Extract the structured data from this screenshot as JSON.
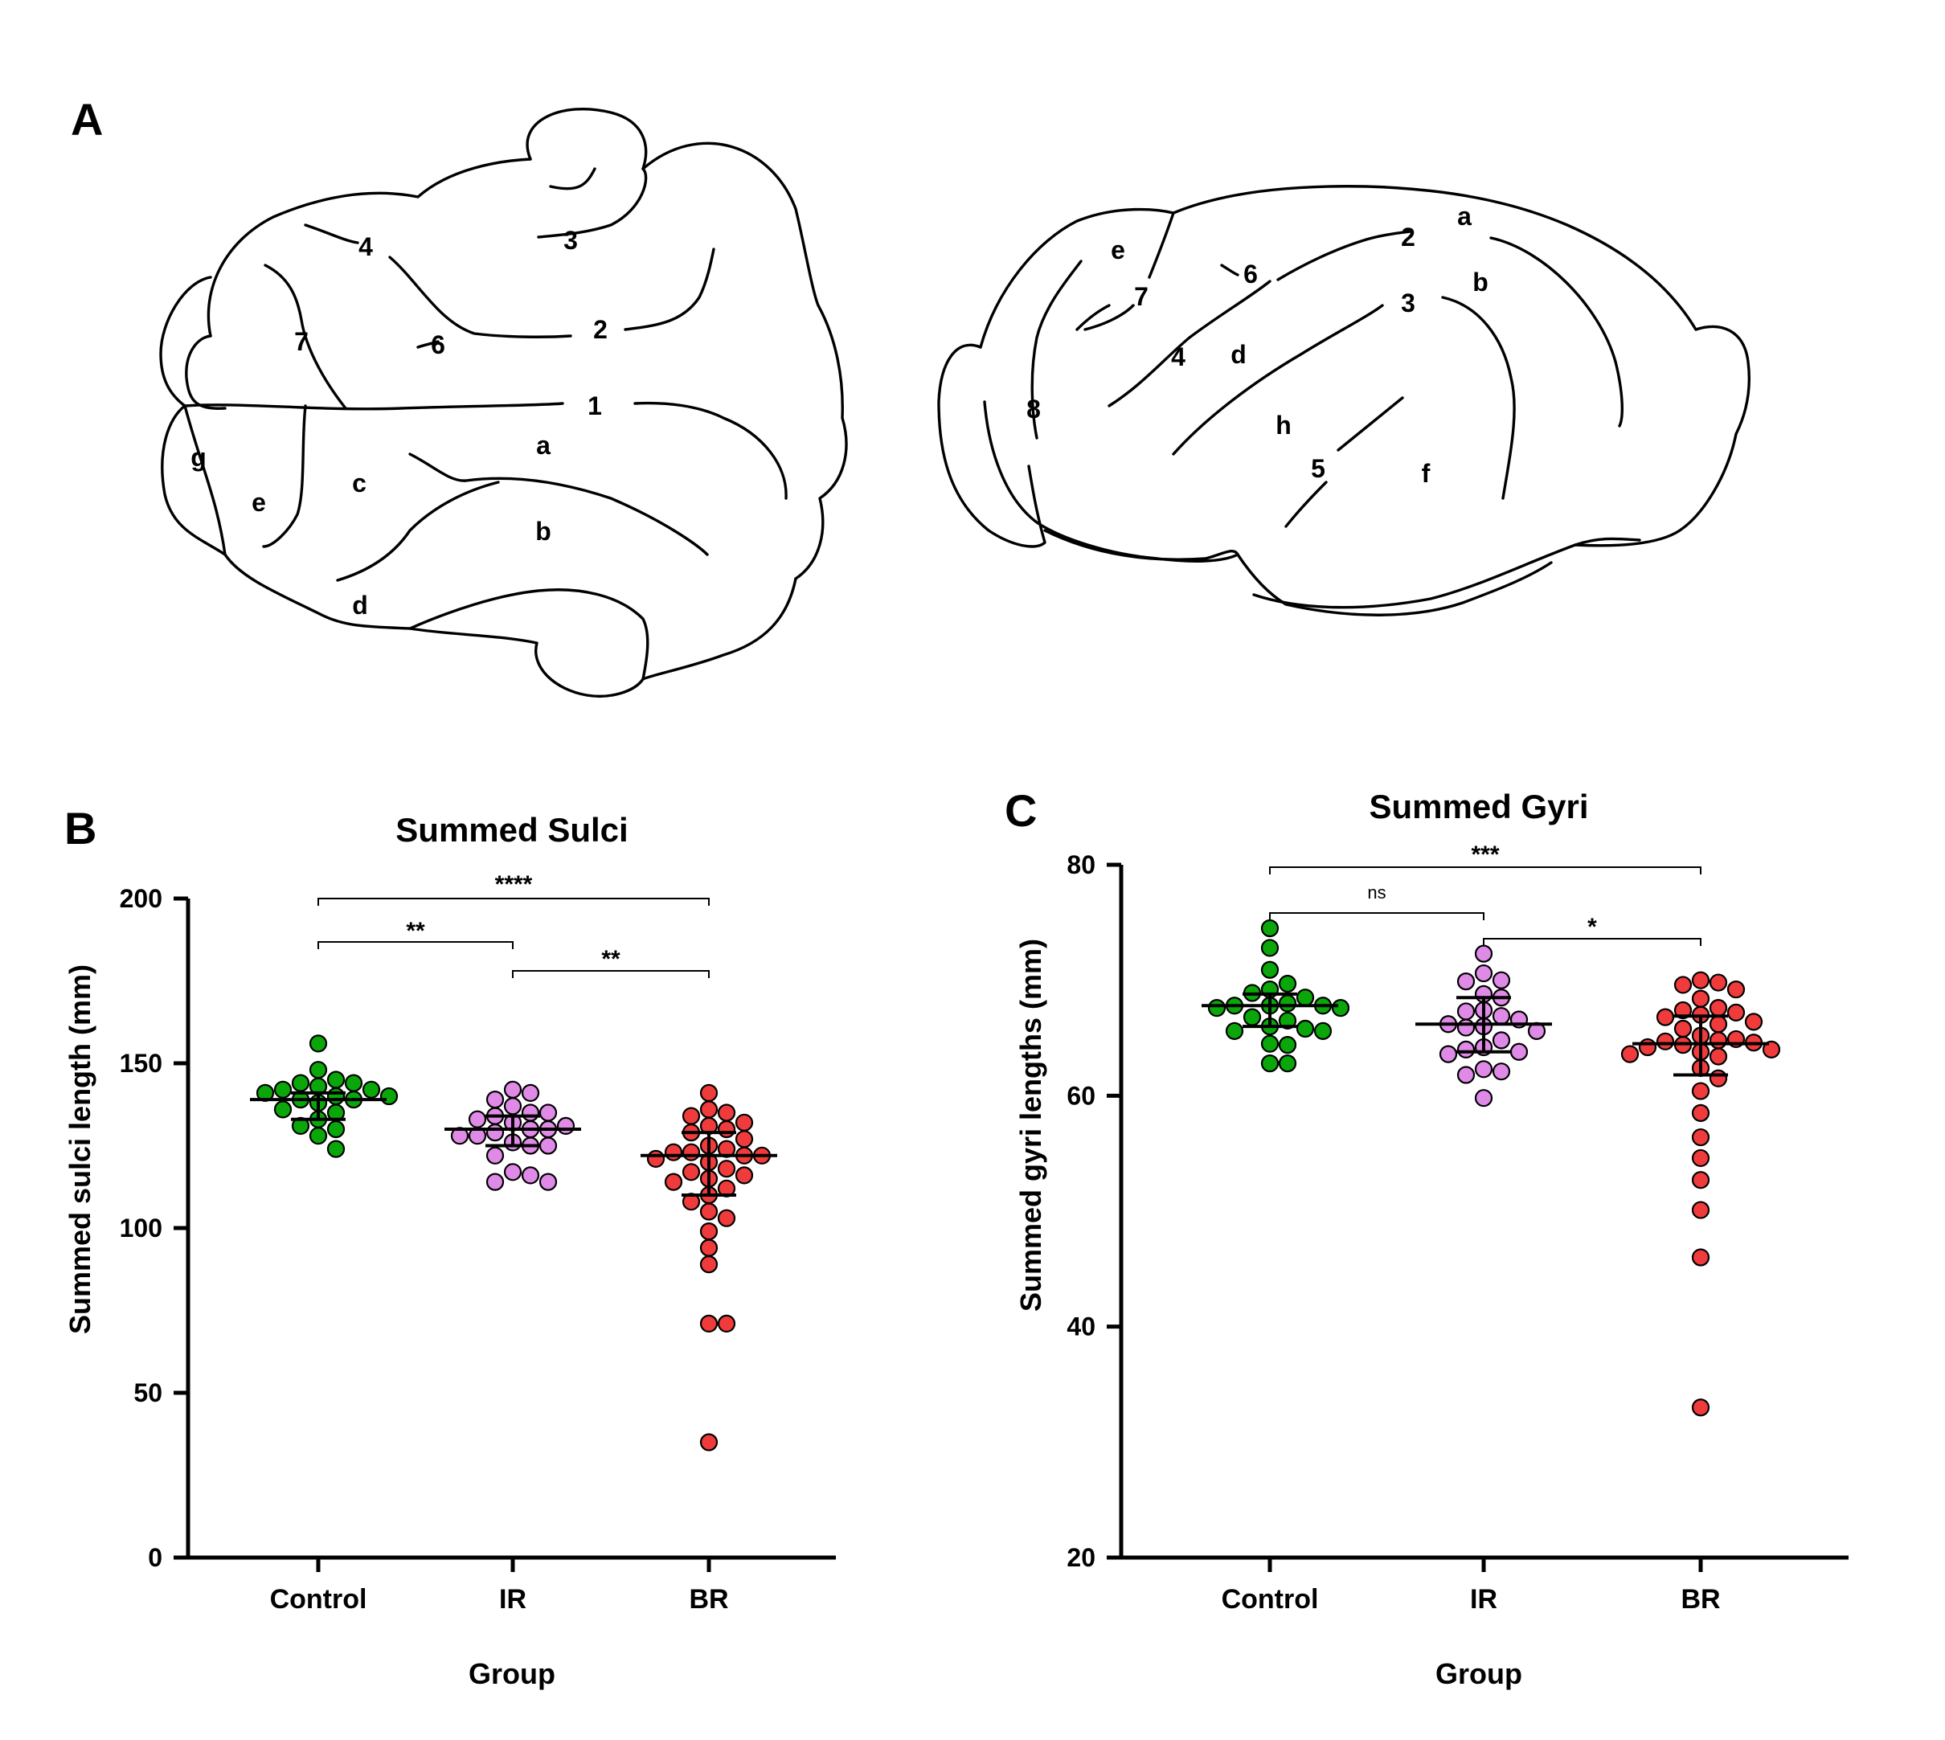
{
  "panels": {
    "a": "A",
    "b": "B",
    "c": "C"
  },
  "brain_dorsal_labels": [
    "1",
    "2",
    "3",
    "4",
    "6",
    "7",
    "a",
    "b",
    "c",
    "d",
    "e",
    "g"
  ],
  "brain_lateral_labels": [
    "2",
    "3",
    "4",
    "5",
    "6",
    "7",
    "8",
    "a",
    "b",
    "d",
    "e",
    "f",
    "h"
  ],
  "colors": {
    "Control": "#0aa60a",
    "IR": "#e08ae8",
    "BR": "#ef3b3b",
    "axis": "#000000"
  },
  "chart_data": [
    {
      "type": "scatter",
      "title": "Summed Sulci",
      "xlabel": "Group",
      "ylabel": "Summed sulci length (mm)",
      "categories": [
        "Control",
        "IR",
        "BR"
      ],
      "ylim": [
        0,
        200
      ],
      "yticks": [
        0,
        50,
        100,
        150,
        200
      ],
      "series": [
        {
          "name": "Control",
          "values": [
            156,
            148,
            145,
            144,
            144,
            143,
            142,
            142,
            141,
            140,
            140,
            139,
            139,
            138,
            136,
            135,
            133,
            131,
            130,
            128,
            124
          ],
          "median": 139,
          "q1": 133,
          "q3": 141
        },
        {
          "name": "IR",
          "values": [
            142,
            141,
            139,
            137,
            135,
            135,
            134,
            133,
            132,
            131,
            130,
            130,
            129,
            128,
            128,
            126,
            125,
            125,
            122,
            117,
            116,
            114,
            114
          ],
          "median": 130,
          "q1": 125,
          "q3": 134
        },
        {
          "name": "BR",
          "values": [
            141,
            136,
            135,
            134,
            132,
            131,
            130,
            129,
            127,
            125,
            124,
            123,
            123,
            122,
            122,
            121,
            120,
            118,
            117,
            116,
            115,
            114,
            112,
            110,
            108,
            105,
            103,
            99,
            94,
            89,
            71,
            71,
            35
          ],
          "median": 122,
          "q1": 110,
          "q3": 129
        }
      ],
      "comparisons": [
        {
          "groups": [
            "Control",
            "BR"
          ],
          "label": "****"
        },
        {
          "groups": [
            "Control",
            "IR"
          ],
          "label": "**"
        },
        {
          "groups": [
            "IR",
            "BR"
          ],
          "label": "**"
        }
      ]
    },
    {
      "type": "scatter",
      "title": "Summed Gyri",
      "xlabel": "Group",
      "ylabel": "Summed gyri lengths (mm)",
      "categories": [
        "Control",
        "IR",
        "BR"
      ],
      "ylim": [
        20,
        80
      ],
      "yticks": [
        20,
        40,
        60,
        80
      ],
      "series": [
        {
          "name": "Control",
          "values": [
            74.5,
            72.8,
            70.9,
            69.7,
            69.2,
            68.9,
            68.5,
            68.0,
            67.8,
            67.8,
            67.8,
            67.6,
            67.6,
            66.8,
            66.5,
            66.0,
            65.8,
            65.6,
            65.6,
            64.5,
            64.4,
            62.8,
            62.8
          ],
          "median": 67.8,
          "q1": 66.0,
          "q3": 68.8
        },
        {
          "name": "IR",
          "values": [
            72.3,
            70.6,
            70.0,
            69.9,
            68.8,
            68.5,
            67.4,
            67.3,
            66.9,
            66.6,
            66.2,
            66.0,
            65.9,
            65.6,
            64.8,
            64.2,
            64.0,
            63.8,
            63.6,
            62.3,
            62.1,
            61.8,
            59.8
          ],
          "median": 66.2,
          "q1": 63.8,
          "q3": 68.5
        },
        {
          "name": "BR",
          "values": [
            70.0,
            69.8,
            69.6,
            69.2,
            68.4,
            67.6,
            67.4,
            67.2,
            67.0,
            66.8,
            66.4,
            66.2,
            65.8,
            65.2,
            64.9,
            64.8,
            64.7,
            64.6,
            64.4,
            64.2,
            64.0,
            63.8,
            63.6,
            63.4,
            62.4,
            61.5,
            60.4,
            58.5,
            56.4,
            54.6,
            52.7,
            50.1,
            46.0,
            33.0
          ],
          "median": 64.5,
          "q1": 61.8,
          "q3": 66.9
        }
      ],
      "comparisons": [
        {
          "groups": [
            "Control",
            "BR"
          ],
          "label": "***"
        },
        {
          "groups": [
            "Control",
            "IR"
          ],
          "label": "ns"
        },
        {
          "groups": [
            "IR",
            "BR"
          ],
          "label": "*"
        }
      ]
    }
  ]
}
